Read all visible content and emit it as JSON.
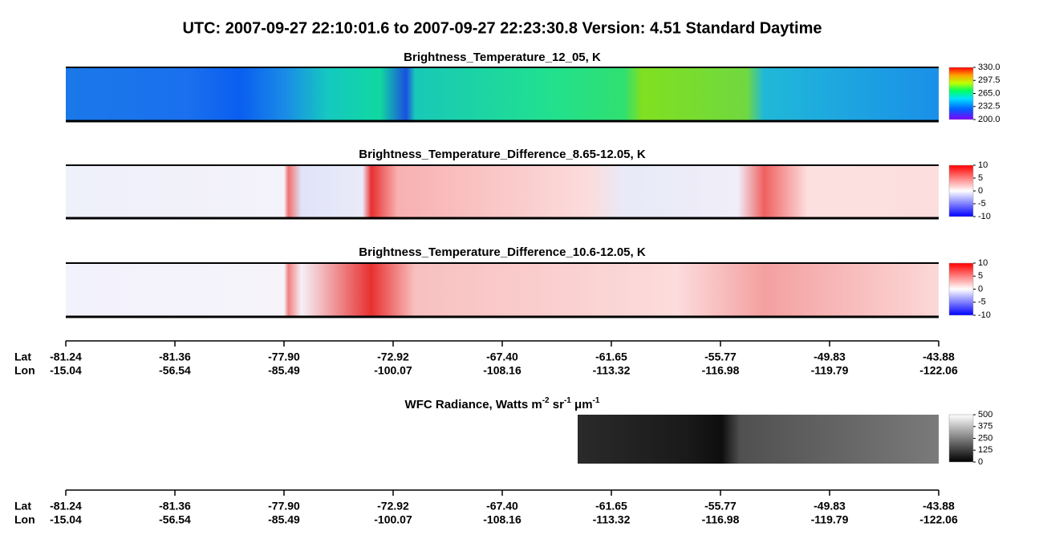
{
  "title": "UTC:  2007-09-27   22:10:01.6  to  2007-09-27   22:23:30.8    Version: 4.51  Standard Daytime",
  "chart_data": [
    {
      "type": "heatmap",
      "title": "Brightness_Temperature_12_05, K",
      "colorbar_ticks": [
        {
          "value": 200,
          "label": "200.0"
        },
        {
          "value": 232.5,
          "label": "232.5"
        },
        {
          "value": 265,
          "label": "265.0"
        },
        {
          "value": 297.5,
          "label": "297.5"
        },
        {
          "value": 330,
          "label": "330.0"
        }
      ]
    },
    {
      "type": "heatmap",
      "title": "Brightness_Temperature_Difference_8.65-12.05, K",
      "colorbar_ticks": [
        -10,
        -5,
        0,
        5,
        10
      ]
    },
    {
      "type": "heatmap",
      "title": "Brightness_Temperature_Difference_10.6-12.05, K",
      "colorbar_ticks": [
        -10,
        -5,
        0,
        5,
        10
      ]
    },
    {
      "type": "heatmap",
      "title_parts": [
        "WFC Radiance, Watts m",
        "-2",
        " sr",
        "-1",
        " μm",
        "-1"
      ],
      "colorbar_ticks": [
        0,
        125,
        250,
        375,
        500
      ]
    }
  ],
  "axes": [
    {
      "row_labels": [
        "Lat",
        "Lon"
      ],
      "lat": [
        "-81.24",
        "-81.36",
        "-77.90",
        "-72.92",
        "-67.40",
        "-61.65",
        "-55.77",
        "-49.83",
        "-43.88"
      ],
      "lon": [
        "-15.04",
        "-56.54",
        "-85.49",
        "-100.07",
        "-108.16",
        "-113.32",
        "-116.98",
        "-119.79",
        "-122.06"
      ]
    },
    {
      "row_labels": [
        "Lat",
        "Lon"
      ],
      "lat": [
        "-81.24",
        "-81.36",
        "-77.90",
        "-72.92",
        "-67.40",
        "-61.65",
        "-55.77",
        "-49.83",
        "-43.88"
      ],
      "lon": [
        "-15.04",
        "-56.54",
        "-85.49",
        "-100.07",
        "-108.16",
        "-113.32",
        "-116.98",
        "-119.79",
        "-122.06"
      ]
    }
  ]
}
